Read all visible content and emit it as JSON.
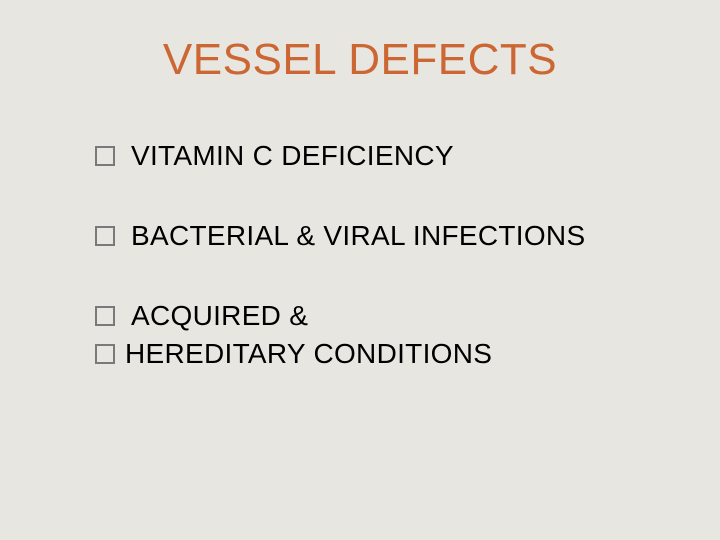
{
  "slide": {
    "title": "VESSEL DEFECTS",
    "title_color": "#cc6633",
    "title_fontsize": 44,
    "background_color": "#e8e6e1",
    "bullet_color": "#7a7a7a",
    "text_color": "#000000",
    "text_fontsize": 28,
    "bullets": [
      {
        "text": "VITAMIN C DEFICIENCY",
        "spaced": true
      },
      {
        "text": "BACTERIAL & VIRAL INFECTIONS",
        "spaced": true
      },
      {
        "text": "ACQUIRED &",
        "spaced": true
      },
      {
        "text": "HEREDITARY CONDITIONS",
        "spaced": false
      }
    ]
  }
}
